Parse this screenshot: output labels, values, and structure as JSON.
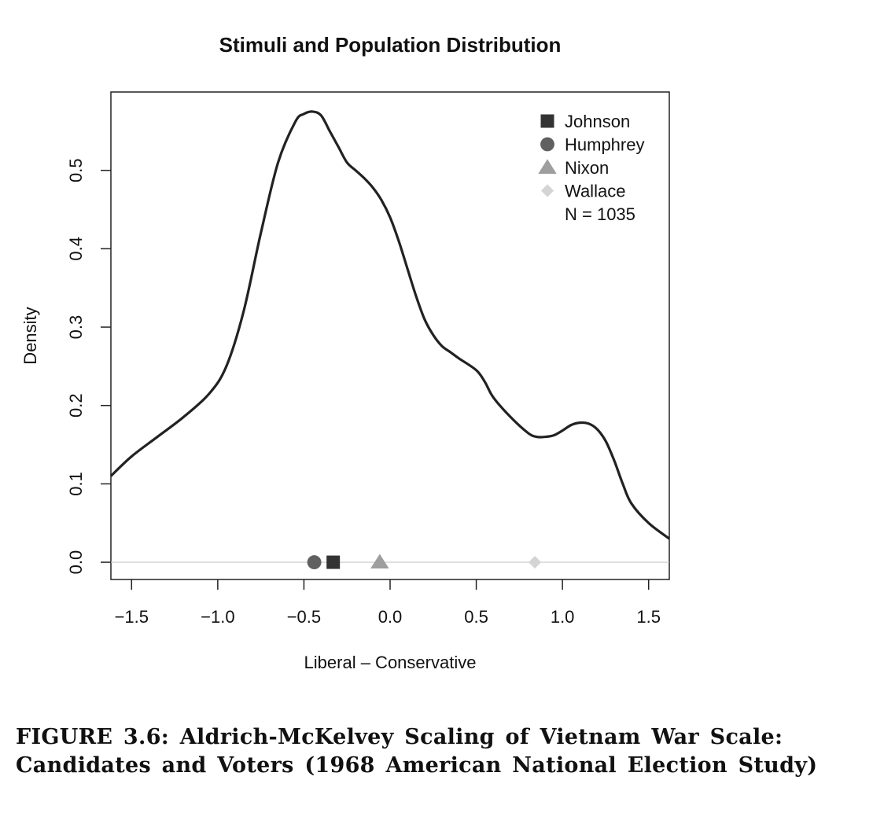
{
  "chart_data": {
    "type": "line",
    "title": "Stimuli and Population Distribution",
    "xlabel": "Liberal – Conservative",
    "ylabel": "Density",
    "xlim": [
      -1.62,
      1.62
    ],
    "ylim": [
      -0.022,
      0.6
    ],
    "x_ticks": [
      -1.5,
      -1.0,
      -0.5,
      0.0,
      0.5,
      1.0,
      1.5
    ],
    "x_tick_labels": [
      "−1.5",
      "−1.0",
      "−0.5",
      "0.0",
      "0.5",
      "1.0",
      "1.5"
    ],
    "y_ticks": [
      0.0,
      0.1,
      0.2,
      0.3,
      0.4,
      0.5
    ],
    "y_tick_labels": [
      "0.0",
      "0.1",
      "0.2",
      "0.3",
      "0.4",
      "0.5"
    ],
    "grid": false,
    "legend_position": "top-right",
    "density": {
      "x": [
        -1.62,
        -1.5,
        -1.35,
        -1.2,
        -1.05,
        -0.95,
        -0.85,
        -0.75,
        -0.65,
        -0.55,
        -0.5,
        -0.45,
        -0.4,
        -0.35,
        -0.3,
        -0.25,
        -0.2,
        -0.15,
        -0.1,
        -0.05,
        0.0,
        0.05,
        0.1,
        0.15,
        0.2,
        0.25,
        0.3,
        0.35,
        0.4,
        0.5,
        0.55,
        0.6,
        0.7,
        0.8,
        0.85,
        0.9,
        0.95,
        1.0,
        1.05,
        1.1,
        1.15,
        1.2,
        1.25,
        1.3,
        1.35,
        1.4,
        1.5,
        1.62
      ],
      "y": [
        0.11,
        0.135,
        0.16,
        0.185,
        0.215,
        0.25,
        0.32,
        0.42,
        0.51,
        0.562,
        0.572,
        0.575,
        0.57,
        0.55,
        0.53,
        0.51,
        0.5,
        0.49,
        0.478,
        0.462,
        0.44,
        0.41,
        0.375,
        0.34,
        0.31,
        0.29,
        0.276,
        0.268,
        0.26,
        0.245,
        0.23,
        0.21,
        0.185,
        0.165,
        0.16,
        0.16,
        0.162,
        0.168,
        0.175,
        0.178,
        0.177,
        0.17,
        0.155,
        0.13,
        0.1,
        0.075,
        0.05,
        0.03
      ]
    },
    "baseline_y": 0,
    "series": [
      {
        "name": "Johnson",
        "x": -0.33,
        "y": 0,
        "marker": "square",
        "color": "#333333"
      },
      {
        "name": "Humphrey",
        "x": -0.44,
        "y": 0,
        "marker": "circle",
        "color": "#606060"
      },
      {
        "name": "Nixon",
        "x": -0.06,
        "y": 0,
        "marker": "triangle",
        "color": "#9e9e9e"
      },
      {
        "name": "Wallace",
        "x": 0.84,
        "y": 0,
        "marker": "diamond",
        "color": "#d4d4d4"
      }
    ],
    "legend_note": "N = 1035",
    "colors": {
      "curve": "#222222",
      "baseline": "#c8c8c8",
      "axis": "#222222"
    }
  },
  "caption": {
    "line1": "FIGURE 3.6: Aldrich-McKelvey Scaling of Vietnam War Scale:",
    "line2": "Candidates and Voters (1968 American National Election Study)"
  }
}
